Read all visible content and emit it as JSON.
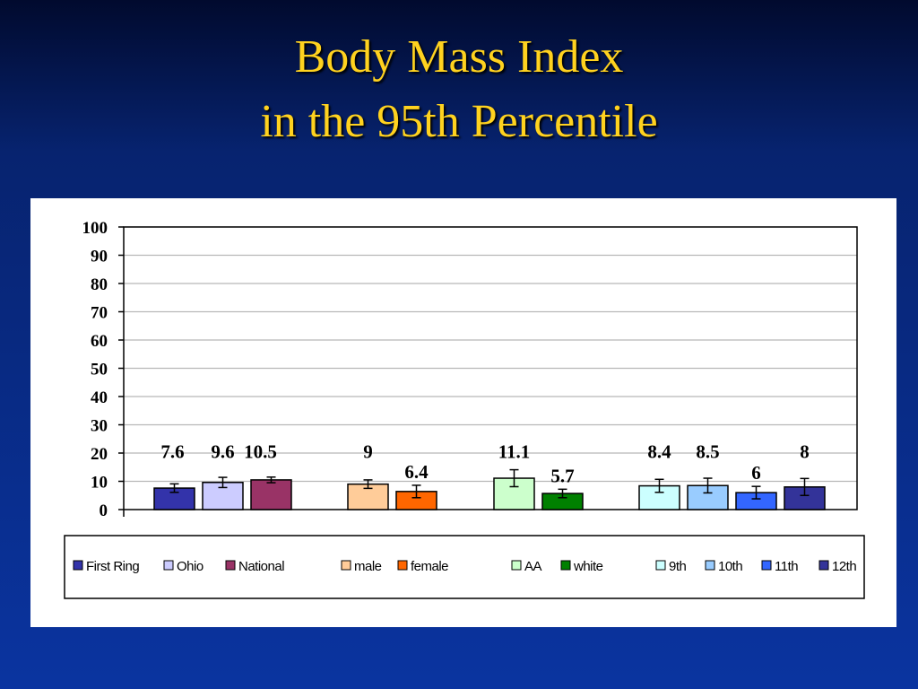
{
  "slide": {
    "title_line1": "Body Mass Index",
    "title_line2": "in the 95th Percentile"
  },
  "chart_data": {
    "type": "bar",
    "ylim": [
      0,
      100
    ],
    "yticks": [
      0,
      10,
      20,
      30,
      40,
      50,
      60,
      70,
      80,
      90,
      100
    ],
    "grid": true,
    "legend": "bottom",
    "groups": [
      {
        "bars": [
          {
            "name": "First Ring",
            "value": 7.6,
            "label": "7.6",
            "error": 1.5,
            "color": "#3333aa"
          },
          {
            "name": "Ohio",
            "value": 9.6,
            "label": "9.6",
            "error": 1.8,
            "color": "#ccccff"
          },
          {
            "name": "National",
            "value": 10.5,
            "label": "10.5",
            "error": 1.0,
            "color": "#993366"
          }
        ]
      },
      {
        "bars": [
          {
            "name": "male",
            "value": 9,
            "label": "9",
            "error": 1.5,
            "color": "#ffcc99"
          },
          {
            "name": "female",
            "value": 6.4,
            "label": "6.4",
            "error": 2.2,
            "color": "#ff6600"
          }
        ]
      },
      {
        "bars": [
          {
            "name": "AA",
            "value": 11.1,
            "label": "11.1",
            "error": 3.0,
            "color": "#ccffcc"
          },
          {
            "name": "white",
            "value": 5.7,
            "label": "5.7",
            "error": 1.5,
            "color": "#008000"
          }
        ]
      },
      {
        "bars": [
          {
            "name": "9th",
            "value": 8.4,
            "label": "8.4",
            "error": 2.3,
            "color": "#ccffff"
          },
          {
            "name": "10th",
            "value": 8.5,
            "label": "8.5",
            "error": 2.6,
            "color": "#99ccff"
          },
          {
            "name": "11th",
            "value": 6,
            "label": "6",
            "error": 2.2,
            "color": "#3366ff"
          },
          {
            "name": "12th",
            "value": 8,
            "label": "8",
            "error": 3.0,
            "color": "#333399"
          }
        ]
      }
    ]
  }
}
